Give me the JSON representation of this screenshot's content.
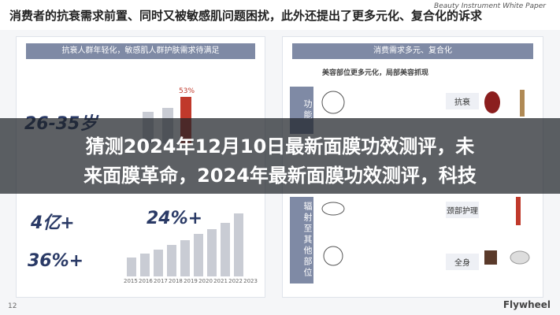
{
  "header": {
    "title": "消费者的抗衰需求前置、同时又被敏感肌问题困扰，此外还提出了更多元化、复合化的诉求",
    "subtitle": "Beauty Instrument White Paper"
  },
  "left": {
    "panel_title": "抗衰人群年轻化，敏感肌人群护肤需求待满足",
    "stats": [
      "26-35岁",
      "4亿+",
      "24%+",
      "36%+"
    ],
    "bar_label": "53%",
    "years": [
      "2015",
      "2016",
      "2017",
      "2018",
      "2019",
      "2020",
      "2021",
      "2022",
      "2023"
    ]
  },
  "right": {
    "panel_title": "消费需求多元、复合化",
    "subtitle": "美容部位更多元化，局部美容抓现",
    "side": [
      "功能",
      "辐射至其他部位"
    ],
    "rows": [
      "抗衰",
      "颈部护理",
      "全身"
    ]
  },
  "overlay": {
    "lines": [
      "猜测2024年12月10日最新面膜功效测评，未",
      "来面膜革命，2024年最新面膜功效测评，科技"
    ]
  },
  "footer": {
    "page": "12",
    "watermark": "Flywheel"
  }
}
